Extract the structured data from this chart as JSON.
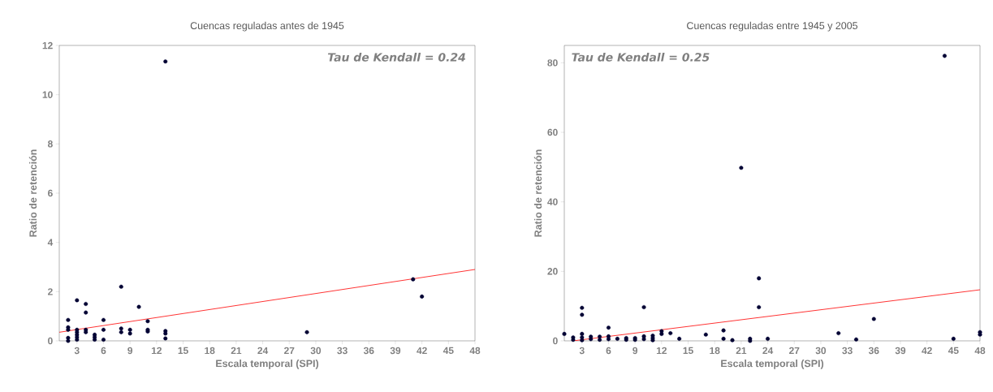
{
  "chart_data": [
    {
      "type": "scatter",
      "title": "Cuencas reguladas antes de 1945",
      "xlabel": "Escala temporal (SPI)",
      "ylabel": "Ratio de retención",
      "annotations": [
        "Tau de Kendall = 0.24"
      ],
      "xlim": [
        1,
        48
      ],
      "ylim": [
        0,
        12
      ],
      "xticks": [
        3,
        6,
        9,
        12,
        15,
        18,
        21,
        24,
        27,
        30,
        33,
        36,
        39,
        42,
        45,
        48
      ],
      "yticks": [
        0,
        2,
        4,
        6,
        8,
        10,
        12
      ],
      "grid": false,
      "marker": "circle",
      "series": [
        {
          "color": "#000033",
          "x": [
            2,
            2,
            2,
            2,
            2,
            3,
            3,
            3,
            3,
            3,
            3,
            4,
            4,
            4,
            4,
            5,
            5,
            5,
            6,
            6,
            6,
            8,
            8,
            8,
            9,
            9,
            10,
            11,
            11,
            11,
            13,
            13,
            13,
            13,
            29,
            41,
            42
          ],
          "values": [
            0.85,
            0.55,
            0.45,
            0.12,
            0.0,
            1.65,
            0.45,
            0.35,
            0.25,
            0.15,
            0.05,
            1.5,
            1.15,
            0.45,
            0.35,
            0.25,
            0.15,
            0.05,
            0.85,
            0.45,
            0.05,
            2.2,
            0.5,
            0.35,
            0.45,
            0.3,
            1.38,
            0.8,
            0.45,
            0.38,
            11.35,
            0.4,
            0.3,
            0.1,
            0.35,
            2.5,
            1.8
          ]
        },
        {
          "type": "line",
          "color": "#ff0000",
          "marker": "none",
          "x": [
            1,
            48
          ],
          "values": [
            0.35,
            2.9
          ]
        }
      ]
    },
    {
      "type": "scatter",
      "title": "Cuencas reguladas entre 1945 y 2005",
      "xlabel": "Escala temporal (SPI)",
      "ylabel": "Ratio de retención",
      "annotations": [
        "Tau de Kendall = 0.25"
      ],
      "xlim": [
        1,
        48
      ],
      "ylim": [
        0,
        85
      ],
      "xticks": [
        3,
        6,
        9,
        12,
        15,
        18,
        21,
        24,
        27,
        30,
        33,
        36,
        39,
        42,
        45,
        48
      ],
      "yticks": [
        0,
        20,
        40,
        60,
        80
      ],
      "grid": false,
      "marker": "circle",
      "series": [
        {
          "color": "#000033",
          "x": [
            1,
            2,
            2,
            3,
            3,
            3,
            3,
            3,
            4,
            4,
            5,
            5,
            6,
            6,
            6,
            7,
            8,
            8,
            9,
            9,
            10,
            10,
            10,
            11,
            11,
            11,
            12,
            12,
            13,
            14,
            17,
            19,
            19,
            20,
            21,
            22,
            22,
            23,
            23,
            24,
            32,
            34,
            36,
            44,
            45,
            48,
            48
          ],
          "values": [
            2,
            1,
            0.3,
            9.5,
            7.5,
            2,
            1,
            0.2,
            1.2,
            0.5,
            1.2,
            0.3,
            3.8,
            1.3,
            0.5,
            0.6,
            0.8,
            0.3,
            0.8,
            0.3,
            9.7,
            1.3,
            0.5,
            1.5,
            0.8,
            0.2,
            2.8,
            2,
            2.2,
            0.6,
            1.8,
            3,
            0.6,
            0.2,
            49.8,
            0.6,
            0,
            18,
            9.7,
            0.6,
            2.2,
            0.4,
            6.3,
            82,
            0.6,
            2.5,
            1.8
          ]
        },
        {
          "type": "line",
          "color": "#ff0000",
          "marker": "none",
          "x": [
            2,
            48
          ],
          "values": [
            0,
            14.7
          ]
        }
      ]
    }
  ]
}
